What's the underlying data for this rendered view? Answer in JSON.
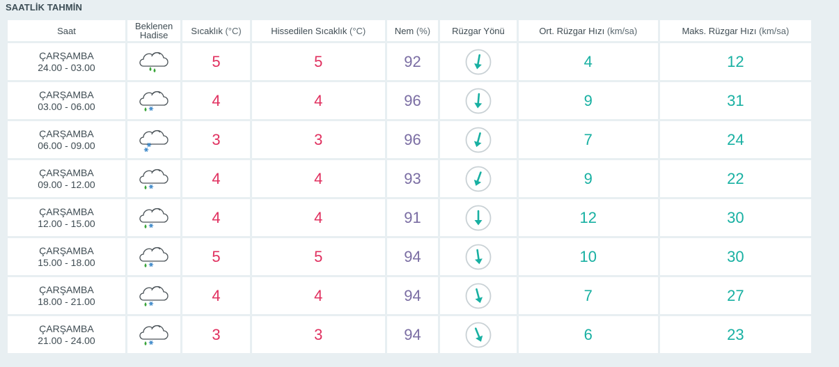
{
  "section": {
    "title": "SAATLİK TAHMİN"
  },
  "table": {
    "headers": {
      "saat": "Saat",
      "hadise_line1": "Beklenen",
      "hadise_line2": "Hadise",
      "temp_label": "Sıcaklık",
      "temp_unit": "(°C)",
      "feels_label": "Hissedilen Sıcaklık",
      "feels_unit": "(°C)",
      "humid_label": "Nem",
      "humid_unit": "(%)",
      "wind_dir_label": "Rüzgar Yönü",
      "wind_avg_label": "Ort. Rüzgar Hızı",
      "wind_avg_unit": "(km/sa)",
      "wind_max_label": "Maks. Rüzgar Hızı",
      "wind_max_unit": "(km/sa)"
    },
    "rows": [
      {
        "day": "ÇARŞAMBA",
        "time": "24.00 - 03.00",
        "weather_icon": "cloud-rain-icon",
        "temp": "5",
        "feels": "5",
        "humidity": "92",
        "wind_dir_deg": 190,
        "wind_avg": "4",
        "wind_max": "12"
      },
      {
        "day": "ÇARŞAMBA",
        "time": "03.00 - 06.00",
        "weather_icon": "cloud-sleet-icon",
        "temp": "4",
        "feels": "4",
        "humidity": "96",
        "wind_dir_deg": 185,
        "wind_avg": "9",
        "wind_max": "31"
      },
      {
        "day": "ÇARŞAMBA",
        "time": "06.00 - 09.00",
        "weather_icon": "cloud-snow-icon",
        "temp": "3",
        "feels": "3",
        "humidity": "96",
        "wind_dir_deg": 195,
        "wind_avg": "7",
        "wind_max": "24"
      },
      {
        "day": "ÇARŞAMBA",
        "time": "09.00 - 12.00",
        "weather_icon": "cloud-sleet-icon",
        "temp": "4",
        "feels": "4",
        "humidity": "93",
        "wind_dir_deg": 200,
        "wind_avg": "9",
        "wind_max": "22"
      },
      {
        "day": "ÇARŞAMBA",
        "time": "12.00 - 15.00",
        "weather_icon": "cloud-sleet-icon",
        "temp": "4",
        "feels": "4",
        "humidity": "91",
        "wind_dir_deg": 180,
        "wind_avg": "12",
        "wind_max": "30"
      },
      {
        "day": "ÇARŞAMBA",
        "time": "15.00 - 18.00",
        "weather_icon": "cloud-sleet-icon",
        "temp": "5",
        "feels": "5",
        "humidity": "94",
        "wind_dir_deg": 172,
        "wind_avg": "10",
        "wind_max": "30"
      },
      {
        "day": "ÇARŞAMBA",
        "time": "18.00 - 21.00",
        "weather_icon": "cloud-sleet-icon",
        "temp": "4",
        "feels": "4",
        "humidity": "94",
        "wind_dir_deg": 165,
        "wind_avg": "7",
        "wind_max": "27"
      },
      {
        "day": "ÇARŞAMBA",
        "time": "21.00 - 24.00",
        "weather_icon": "cloud-sleet-icon",
        "temp": "3",
        "feels": "3",
        "humidity": "94",
        "wind_dir_deg": 158,
        "wind_avg": "6",
        "wind_max": "23"
      }
    ]
  },
  "colors": {
    "background": "#e8eff2",
    "temperature": "#e0305f",
    "humidity": "#7a6da3",
    "wind": "#18b0a2",
    "rain_drop": "#3aa43a",
    "snowflake": "#3a86c8"
  }
}
